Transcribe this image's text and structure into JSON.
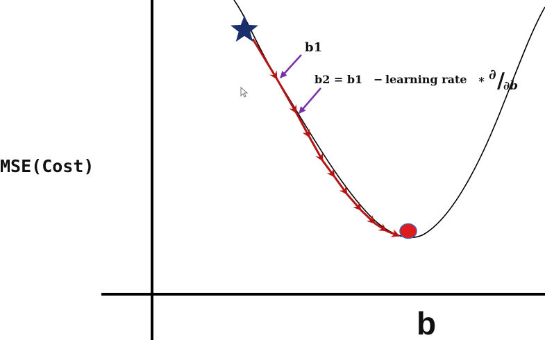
{
  "axes": {
    "y_label": "MSE(Cost)",
    "x_label": "b"
  },
  "annotations": {
    "b1": "b1",
    "formula_lhs": "b2 = b1",
    "formula_minus": "−",
    "formula_rate": "learning rate",
    "formula_times": "∗",
    "derivative_num": "∂",
    "derivative_slash": "/",
    "derivative_den": "∂b"
  },
  "colors": {
    "axis": "#000000",
    "curve": "#000000",
    "path": "#b41414",
    "start_star": "#1a2f6b",
    "minimum_dot": "#e01b1b",
    "minimum_dot_stroke": "#4a5fa8",
    "pointer_arrow": "#7a2ea8"
  },
  "markers": {
    "start": "start-star-icon",
    "end": "minimum-dot"
  }
}
